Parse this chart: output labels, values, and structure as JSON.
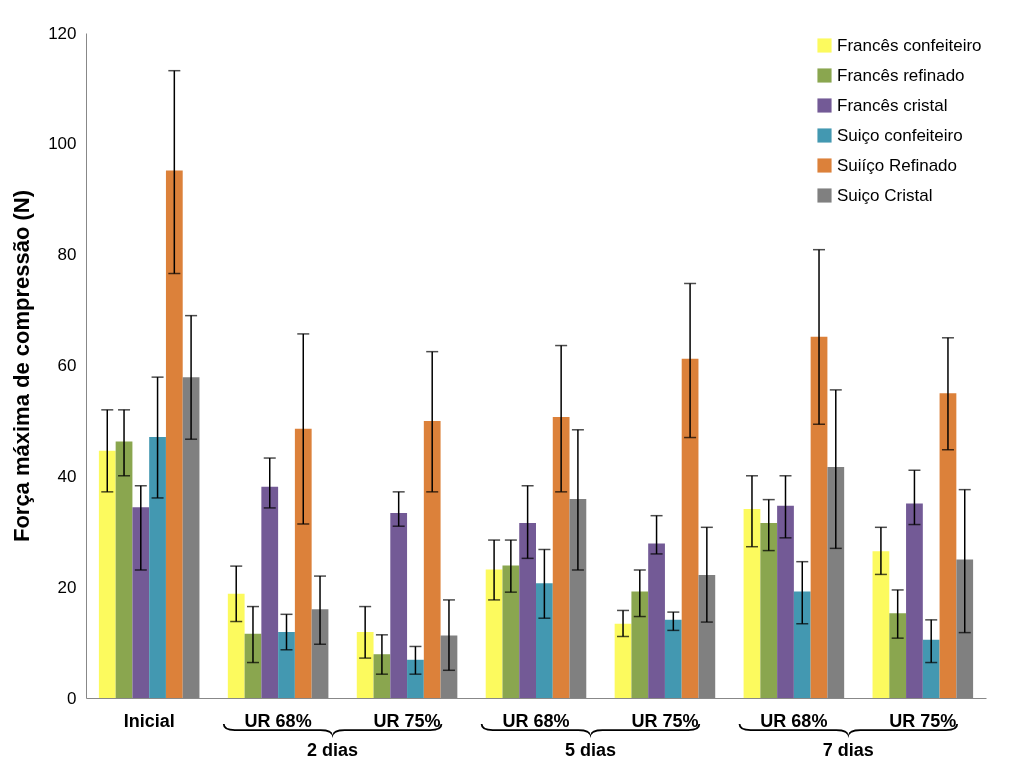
{
  "chart_data": {
    "type": "bar",
    "ylabel": "Força máxima de compressão (N)",
    "categories": [
      "Inicial",
      "UR 68%",
      "UR 75%",
      "UR 68%",
      "UR 75%",
      "UR 68%",
      "UR 75%"
    ],
    "annotations": [
      "2 dias",
      "5 dias",
      "7 dias"
    ],
    "ylim": [
      0,
      120
    ],
    "yticks": [
      0,
      20,
      40,
      60,
      80,
      100,
      120
    ],
    "grid": false,
    "legend": "top right",
    "series": [
      {
        "name": "Francês confeiteiro",
        "color": "#fcfa5e",
        "values": [
          44.6,
          18.8,
          11.9,
          23.2,
          13.4,
          34.1,
          26.5
        ],
        "errors": [
          [
            37.2,
            52.0
          ],
          [
            13.8,
            23.8
          ],
          [
            7.2,
            16.5
          ],
          [
            17.7,
            28.5
          ],
          [
            11.1,
            15.8
          ],
          [
            27.3,
            40.1
          ],
          [
            22.3,
            30.8
          ]
        ]
      },
      {
        "name": "Francês refinado",
        "color": "#8aa64f",
        "values": [
          46.3,
          11.6,
          7.9,
          23.9,
          19.2,
          31.6,
          15.3
        ],
        "errors": [
          [
            40.1,
            52.0
          ],
          [
            6.4,
            16.5
          ],
          [
            4.3,
            11.4
          ],
          [
            19.1,
            28.5
          ],
          [
            14.7,
            23.1
          ],
          [
            26.6,
            35.8
          ],
          [
            10.8,
            19.5
          ]
        ]
      },
      {
        "name": "Francês cristal",
        "color": "#735a96",
        "values": [
          34.4,
          38.1,
          33.4,
          31.6,
          27.9,
          34.7,
          35.1
        ],
        "errors": [
          [
            23.1,
            38.3
          ],
          [
            34.3,
            43.3
          ],
          [
            31.0,
            37.2
          ],
          [
            25.2,
            38.3
          ],
          [
            26.0,
            32.9
          ],
          [
            28.9,
            40.1
          ],
          [
            31.3,
            41.1
          ]
        ]
      },
      {
        "name": "Suiço confeiteiro",
        "color": "#4398b1",
        "values": [
          47.1,
          11.9,
          6.9,
          20.7,
          14.1,
          19.2,
          10.5
        ],
        "errors": [
          [
            36.1,
            57.9
          ],
          [
            8.7,
            15.1
          ],
          [
            4.3,
            9.3
          ],
          [
            14.4,
            26.8
          ],
          [
            12.2,
            15.5
          ],
          [
            13.4,
            24.6
          ],
          [
            6.4,
            14.1
          ]
        ]
      },
      {
        "name": "Suiíço Refinado",
        "color": "#dc813a",
        "values": [
          95.2,
          48.6,
          50.0,
          50.7,
          61.2,
          65.2,
          55.0
        ],
        "errors": [
          [
            76.6,
            113.2
          ],
          [
            31.4,
            65.7
          ],
          [
            37.2,
            62.5
          ],
          [
            37.2,
            63.6
          ],
          [
            47.0,
            74.8
          ],
          [
            49.4,
            80.9
          ],
          [
            44.8,
            65.0
          ]
        ]
      },
      {
        "name": "Suiço Cristal",
        "color": "#808080",
        "values": [
          57.9,
          16.0,
          11.3,
          35.9,
          22.2,
          41.7,
          25.0
        ],
        "errors": [
          [
            46.7,
            69.0
          ],
          [
            9.7,
            22.0
          ],
          [
            5.0,
            17.7
          ],
          [
            23.1,
            48.4
          ],
          [
            13.7,
            30.8
          ],
          [
            27.0,
            55.6
          ],
          [
            11.8,
            37.6
          ]
        ]
      }
    ]
  }
}
